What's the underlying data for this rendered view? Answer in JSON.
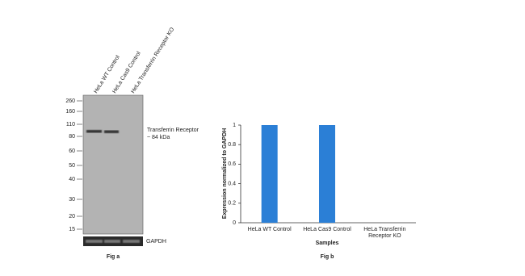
{
  "blot": {
    "lanes": [
      "HeLa WT Control",
      "HeLa Cas9 Control",
      "HeLa Transferrin Receptor KO"
    ],
    "markers": [
      "260",
      "160",
      "110",
      "80",
      "60",
      "50",
      "40",
      "30",
      "20",
      "15"
    ],
    "band_label": "Transferrin Receptor",
    "band_size": "~ 84 kDa",
    "loading_control": "GAPDH",
    "caption": "Fig a"
  },
  "chart_data": {
    "type": "bar",
    "categories": [
      "HeLa WT Control",
      "HeLa Cas9 Control",
      "HeLa Transferrin Receptor KO"
    ],
    "values": [
      1,
      1,
      0
    ],
    "color": "#2b7fd6",
    "ylim": [
      0,
      1
    ],
    "yticks": [
      0,
      0.2,
      0.4,
      0.6,
      0.8,
      1
    ],
    "xlabel": "Samples",
    "ylabel": "Expression normalized to GAPDH",
    "caption": "Fig b"
  }
}
